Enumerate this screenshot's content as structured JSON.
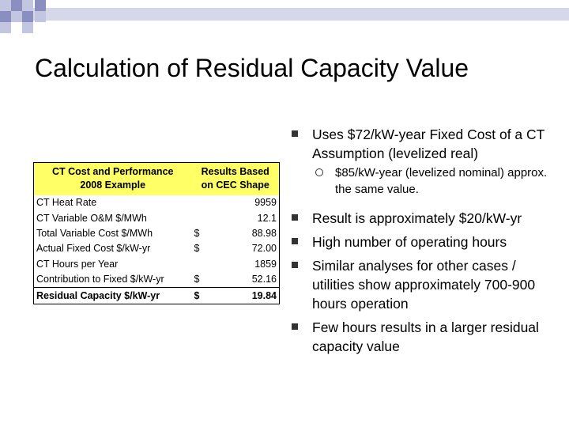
{
  "slide": {
    "title": "Calculation of Residual Capacity Value"
  },
  "table": {
    "header": {
      "col1_line1": "CT Cost and Performance",
      "col1_line2": "2008 Example",
      "col2_line1": "Results Based",
      "col2_line2": "on CEC Shape"
    },
    "rows": [
      {
        "label": "CT Heat Rate",
        "currency": "",
        "value": "9959"
      },
      {
        "label": "CT Variable O&M $/MWh",
        "currency": "",
        "value": "12.1"
      },
      {
        "label": "Total Variable Cost $/MWh",
        "currency": "$",
        "value": "88.98"
      },
      {
        "label": "Actual Fixed Cost $/kW-yr",
        "currency": "$",
        "value": "72.00"
      },
      {
        "label": "CT Hours per Year",
        "currency": "",
        "value": "1859"
      },
      {
        "label": "Contribution to Fixed $/kW-yr",
        "currency": "$",
        "value": "52.16"
      }
    ],
    "total": {
      "label": "Residual Capacity $/kW-yr",
      "currency": "$",
      "value": "19.84"
    },
    "header_color": "#ffff66"
  },
  "bullets": [
    {
      "text": "Uses $72/kW-year Fixed Cost of a CT Assumption (levelized real)"
    },
    {
      "sub": "$85/kW-year (levelized nominal) approx. the same value."
    },
    {
      "text": "Result is approximately $20/kW-yr"
    },
    {
      "text": "High number of operating hours"
    },
    {
      "text": "Similar analyses for other cases / utilities show approximately 700-900 hours operation"
    },
    {
      "text": "Few hours results in a larger residual capacity value"
    }
  ],
  "colors": {
    "deco_dark": "#8a8fbf",
    "deco_light": "#c3c6e0",
    "deco_band": "#d6d8ea"
  }
}
